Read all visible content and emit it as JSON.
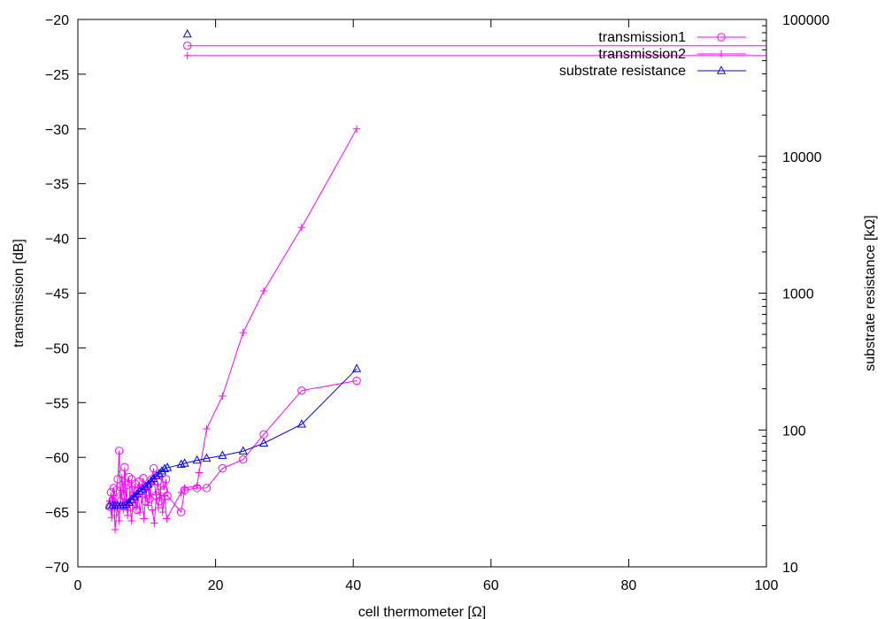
{
  "chart_data": {
    "type": "line",
    "title": "",
    "xlabel": "cell thermometer [Ω]",
    "ylabel": "transmission [dB]",
    "y2label": "substrate resistance [kΩ]",
    "xlim": [
      0,
      100
    ],
    "ylim": [
      -70,
      -20
    ],
    "y2lim": [
      10,
      100000
    ],
    "y2_scale": "log",
    "grid": false,
    "legend_position": "top-right",
    "x_ticks": [
      "0",
      "20",
      "40",
      "60",
      "80",
      "100"
    ],
    "y_ticks": [
      "-70",
      "-65",
      "-60",
      "-55",
      "-50",
      "-45",
      "-40",
      "-35",
      "-30",
      "-25",
      "-20"
    ],
    "y2_ticks": [
      "10",
      "100",
      "1000",
      "10000",
      "100000"
    ],
    "series": [
      {
        "name": "transmission1",
        "color": "#ff00ff",
        "marker": "circle",
        "axis": "y",
        "points": [
          [
            4.6,
            -64.5
          ],
          [
            4.8,
            -63.2
          ],
          [
            5.0,
            -64.0
          ],
          [
            5.2,
            -62.8
          ],
          [
            5.4,
            -65.0
          ],
          [
            5.6,
            -63.0
          ],
          [
            5.8,
            -62.0
          ],
          [
            6.0,
            -59.4
          ],
          [
            6.2,
            -64.0
          ],
          [
            6.4,
            -61.5
          ],
          [
            6.6,
            -63.5
          ],
          [
            6.8,
            -60.9
          ],
          [
            7.0,
            -64.2
          ],
          [
            7.2,
            -62.5
          ],
          [
            7.4,
            -61.8
          ],
          [
            7.6,
            -64.5
          ],
          [
            7.8,
            -62.0
          ],
          [
            8.0,
            -63.8
          ],
          [
            8.3,
            -62.4
          ],
          [
            8.6,
            -64.8
          ],
          [
            8.9,
            -62.2
          ],
          [
            9.2,
            -63.0
          ],
          [
            9.5,
            -61.9
          ],
          [
            9.8,
            -64.0
          ],
          [
            10.1,
            -62.6
          ],
          [
            10.4,
            -63.8
          ],
          [
            10.7,
            -62.0
          ],
          [
            11.0,
            -61.0
          ],
          [
            11.3,
            -63.5
          ],
          [
            11.6,
            -62.2
          ],
          [
            11.9,
            -64.0
          ],
          [
            12.2,
            -61.5
          ],
          [
            12.5,
            -63.0
          ],
          [
            12.8,
            -62.0
          ],
          [
            13.0,
            -63.5
          ],
          [
            15.0,
            -65.0
          ],
          [
            15.5,
            -63.0
          ],
          [
            17.3,
            -62.8
          ],
          [
            18.7,
            -62.8
          ],
          [
            21.0,
            -61.0
          ],
          [
            24.0,
            -60.2
          ],
          [
            27.0,
            -57.9
          ],
          [
            32.5,
            -53.9
          ],
          [
            40.5,
            -53.0
          ],
          [
            15.9,
            -22.4
          ],
          [
            100.0,
            -22.4
          ]
        ]
      },
      {
        "name": "transmission2",
        "color": "#ff00ff",
        "marker": "plus",
        "axis": "y",
        "points": [
          [
            4.6,
            -64.0
          ],
          [
            4.9,
            -65.5
          ],
          [
            5.2,
            -63.5
          ],
          [
            5.4,
            -66.6
          ],
          [
            5.7,
            -64.5
          ],
          [
            6.0,
            -65.8
          ],
          [
            6.3,
            -63.0
          ],
          [
            6.6,
            -64.8
          ],
          [
            6.9,
            -62.5
          ],
          [
            7.2,
            -65.3
          ],
          [
            7.5,
            -63.8
          ],
          [
            7.8,
            -65.8
          ],
          [
            8.1,
            -63.2
          ],
          [
            8.4,
            -64.6
          ],
          [
            8.7,
            -62.8
          ],
          [
            9.0,
            -65.0
          ],
          [
            9.3,
            -63.6
          ],
          [
            9.6,
            -65.6
          ],
          [
            9.9,
            -63.0
          ],
          [
            10.2,
            -64.4
          ],
          [
            10.5,
            -62.6
          ],
          [
            10.8,
            -64.8
          ],
          [
            11.1,
            -66.0
          ],
          [
            11.4,
            -63.4
          ],
          [
            11.7,
            -64.6
          ],
          [
            12.0,
            -62.9
          ],
          [
            12.3,
            -65.0
          ],
          [
            12.6,
            -63.5
          ],
          [
            12.9,
            -65.6
          ],
          [
            15.0,
            -63.2
          ],
          [
            15.5,
            -62.8
          ],
          [
            17.3,
            -62.6
          ],
          [
            17.6,
            -61.4
          ],
          [
            18.7,
            -57.4
          ],
          [
            21.0,
            -54.4
          ],
          [
            24.0,
            -48.6
          ],
          [
            27.0,
            -44.8
          ],
          [
            32.5,
            -39.0
          ],
          [
            40.5,
            -30.0
          ],
          [
            15.9,
            -23.3
          ],
          [
            100.0,
            -23.3
          ]
        ]
      },
      {
        "name": "substrate resistance",
        "color": "#0000ff",
        "marker": "triangle",
        "axis": "y2",
        "points": [
          [
            4.6,
            28
          ],
          [
            5.0,
            28
          ],
          [
            5.4,
            28
          ],
          [
            5.8,
            28
          ],
          [
            6.2,
            28
          ],
          [
            6.6,
            28
          ],
          [
            7.0,
            28.5
          ],
          [
            7.4,
            29.5
          ],
          [
            7.8,
            31
          ],
          [
            8.2,
            32.5
          ],
          [
            8.6,
            34
          ],
          [
            9.0,
            35.5
          ],
          [
            9.4,
            37
          ],
          [
            9.8,
            38.5
          ],
          [
            10.2,
            40
          ],
          [
            10.6,
            42
          ],
          [
            11.0,
            44
          ],
          [
            11.4,
            46
          ],
          [
            11.8,
            48
          ],
          [
            12.2,
            50
          ],
          [
            12.6,
            52
          ],
          [
            13.0,
            53
          ],
          [
            15.0,
            56
          ],
          [
            15.5,
            57
          ],
          [
            17.3,
            60
          ],
          [
            18.7,
            62
          ],
          [
            21.0,
            65
          ],
          [
            24.0,
            70
          ],
          [
            27.0,
            80
          ],
          [
            32.5,
            110
          ],
          [
            40.5,
            280
          ],
          [
            15.9,
            78000
          ]
        ]
      }
    ]
  }
}
